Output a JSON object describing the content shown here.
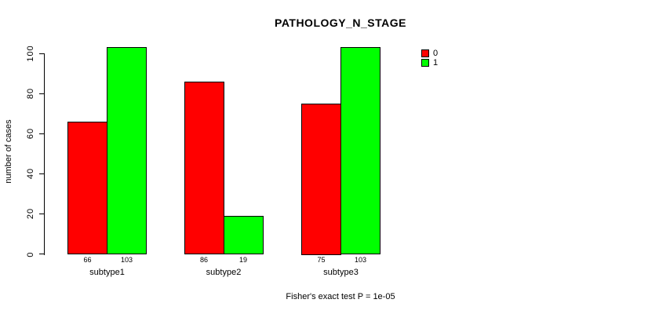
{
  "chart_data": {
    "type": "bar",
    "title": "PATHOLOGY_N_STAGE",
    "xlabel": "",
    "ylabel": "number of cases",
    "annotation": "Fisher's exact test P = 1e-05",
    "categories": [
      "subtype1",
      "subtype2",
      "subtype3"
    ],
    "series": [
      {
        "name": "0",
        "color": "#FF0000",
        "values": [
          66,
          86,
          75
        ]
      },
      {
        "name": "1",
        "color": "#00FF00",
        "values": [
          103,
          19,
          103
        ]
      }
    ],
    "bar_value_labels_shown": true,
    "ylim": [
      0,
      100
    ],
    "yticks": [
      0,
      20,
      40,
      60,
      80,
      100
    ],
    "grid": false,
    "legend_position": "top-right",
    "legend": [
      {
        "label": "0",
        "color": "#FF0000"
      },
      {
        "label": "1",
        "color": "#00FF00"
      }
    ],
    "colors": {
      "background": "#FFFFFF",
      "axis": "#000000",
      "text": "#000000",
      "bar_border": "#000000"
    }
  }
}
